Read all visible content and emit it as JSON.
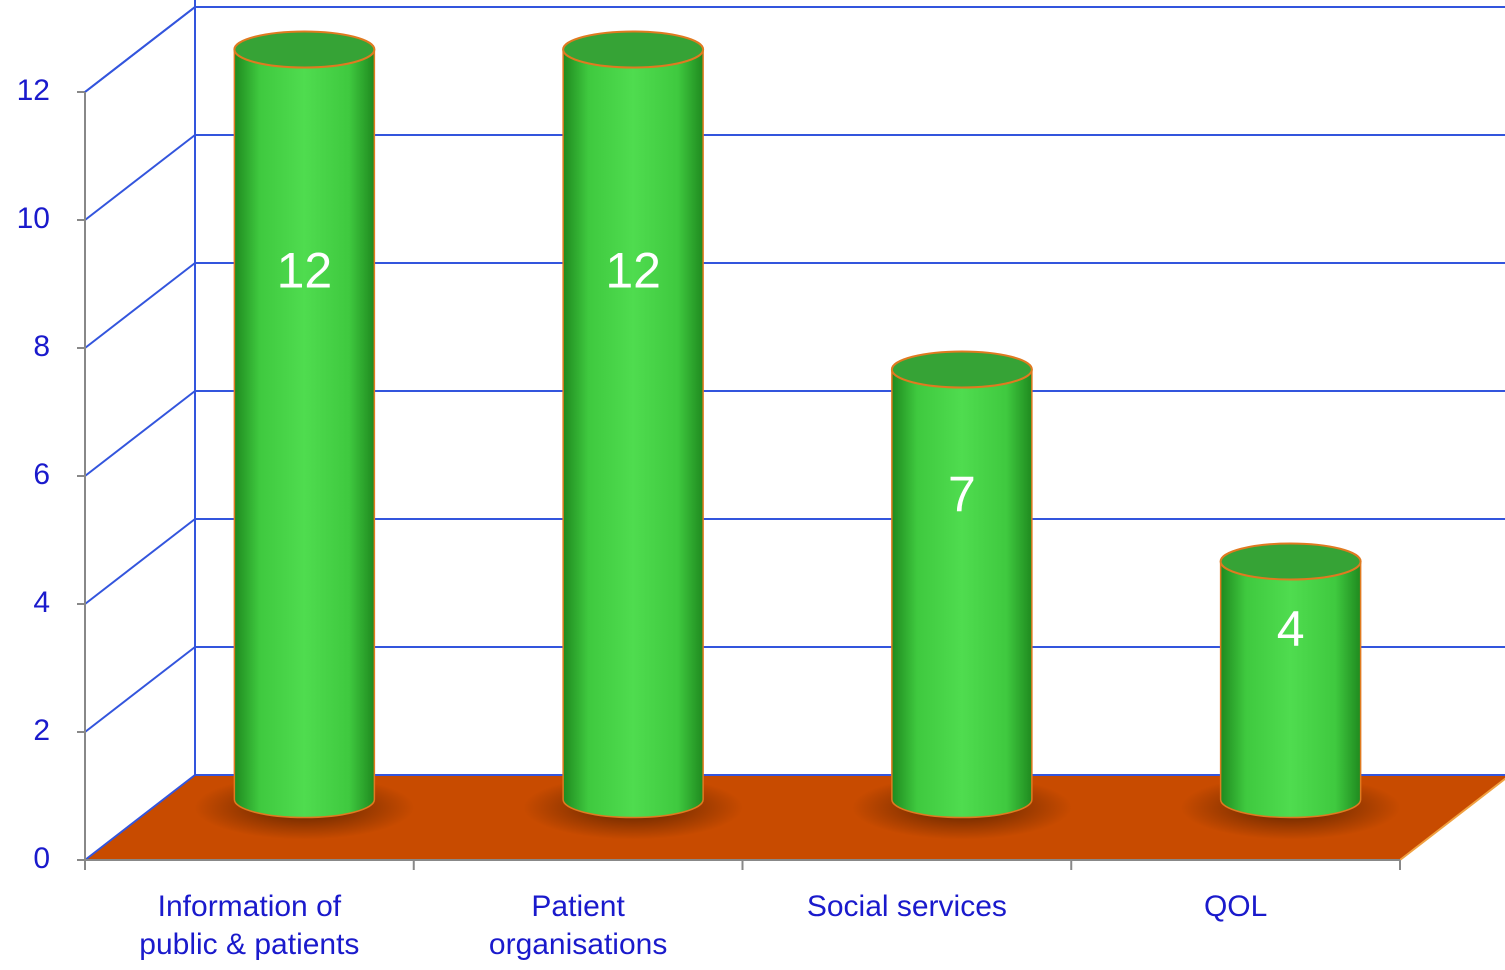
{
  "chart_data": {
    "type": "bar3d",
    "categories": [
      "Information of\npublic & patients",
      "Patient\norganisations",
      "Social services",
      "QOL"
    ],
    "values": [
      12,
      12,
      7,
      4
    ],
    "color": "#4cd94c",
    "floor_color": "#c84b00",
    "ylim": [
      0,
      12
    ],
    "yticks": [
      0,
      2,
      4,
      6,
      8,
      10,
      12
    ],
    "grid": true
  }
}
